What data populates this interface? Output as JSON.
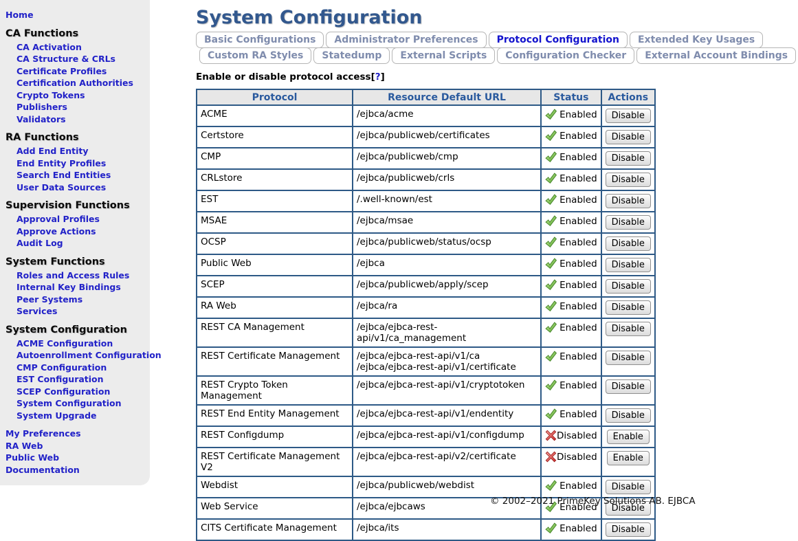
{
  "sidebar": {
    "home": "Home",
    "sections": [
      {
        "title": "CA Functions",
        "items": [
          "CA Activation",
          "CA Structure & CRLs",
          "Certificate Profiles",
          "Certification Authorities",
          "Crypto Tokens",
          "Publishers",
          "Validators"
        ]
      },
      {
        "title": "RA Functions",
        "items": [
          "Add End Entity",
          "End Entity Profiles",
          "Search End Entities",
          "User Data Sources"
        ]
      },
      {
        "title": "Supervision Functions",
        "items": [
          "Approval Profiles",
          "Approve Actions",
          "Audit Log"
        ]
      },
      {
        "title": "System Functions",
        "items": [
          "Roles and Access Rules",
          "Internal Key Bindings",
          "Peer Systems",
          "Services"
        ]
      },
      {
        "title": "System Configuration",
        "items": [
          "ACME Configuration",
          "Autoenrollment Configuration",
          "CMP Configuration",
          "EST Configuration",
          "SCEP Configuration",
          "System Configuration",
          "System Upgrade"
        ]
      }
    ],
    "footer_links": [
      "My Preferences",
      "RA Web",
      "Public Web",
      "Documentation"
    ]
  },
  "main": {
    "title": "System Configuration",
    "tabs_row1": [
      {
        "label": "Basic Configurations",
        "active": false
      },
      {
        "label": "Administrator Preferences",
        "active": false
      },
      {
        "label": "Protocol Configuration",
        "active": true
      },
      {
        "label": "Extended Key Usages",
        "active": false
      }
    ],
    "tabs_row2": [
      {
        "label": "Custom RA Styles",
        "active": false
      },
      {
        "label": "Statedump",
        "active": false
      },
      {
        "label": "External Scripts",
        "active": false
      },
      {
        "label": "Configuration Checker",
        "active": false
      },
      {
        "label": "External Account Bindings",
        "active": false
      }
    ],
    "section_heading": "Enable or disable protocol access",
    "help_open": "[",
    "help_mark": "?",
    "help_close": "]",
    "table": {
      "headers": [
        "Protocol",
        "Resource Default URL",
        "Status",
        "Actions"
      ],
      "rows": [
        {
          "protocol": "ACME",
          "url": "/ejbca/acme",
          "status": "Enabled",
          "action": "Disable"
        },
        {
          "protocol": "Certstore",
          "url": "/ejbca/publicweb/certificates",
          "status": "Enabled",
          "action": "Disable"
        },
        {
          "protocol": "CMP",
          "url": "/ejbca/publicweb/cmp",
          "status": "Enabled",
          "action": "Disable"
        },
        {
          "protocol": "CRLstore",
          "url": "/ejbca/publicweb/crls",
          "status": "Enabled",
          "action": "Disable"
        },
        {
          "protocol": "EST",
          "url": "/.well-known/est",
          "status": "Enabled",
          "action": "Disable"
        },
        {
          "protocol": "MSAE",
          "url": "/ejbca/msae",
          "status": "Enabled",
          "action": "Disable"
        },
        {
          "protocol": "OCSP",
          "url": "/ejbca/publicweb/status/ocsp",
          "status": "Enabled",
          "action": "Disable"
        },
        {
          "protocol": "Public Web",
          "url": "/ejbca",
          "status": "Enabled",
          "action": "Disable"
        },
        {
          "protocol": "SCEP",
          "url": "/ejbca/publicweb/apply/scep",
          "status": "Enabled",
          "action": "Disable"
        },
        {
          "protocol": "RA Web",
          "url": "/ejbca/ra",
          "status": "Enabled",
          "action": "Disable"
        },
        {
          "protocol": "REST CA Management",
          "url": "/ejbca/ejbca-rest-api/v1/ca_management",
          "status": "Enabled",
          "action": "Disable"
        },
        {
          "protocol": "REST Certificate Management",
          "url": "/ejbca/ejbca-rest-api/v1/ca\n/ejbca/ejbca-rest-api/v1/certificate",
          "status": "Enabled",
          "action": "Disable"
        },
        {
          "protocol": "REST Crypto Token Management",
          "url": "/ejbca/ejbca-rest-api/v1/cryptotoken",
          "status": "Enabled",
          "action": "Disable"
        },
        {
          "protocol": "REST End Entity Management",
          "url": "/ejbca/ejbca-rest-api/v1/endentity",
          "status": "Enabled",
          "action": "Disable"
        },
        {
          "protocol": "REST Configdump",
          "url": "/ejbca/ejbca-rest-api/v1/configdump",
          "status": "Disabled",
          "action": "Enable"
        },
        {
          "protocol": "REST Certificate Management V2",
          "url": "/ejbca/ejbca-rest-api/v2/certificate",
          "status": "Disabled",
          "action": "Enable"
        },
        {
          "protocol": "Webdist",
          "url": "/ejbca/publicweb/webdist",
          "status": "Enabled",
          "action": "Disable"
        },
        {
          "protocol": "Web Service",
          "url": "/ejbca/ejbcaws",
          "status": "Enabled",
          "action": "Disable"
        },
        {
          "protocol": "CITS Certificate Management",
          "url": "/ejbca/its",
          "status": "Enabled",
          "action": "Disable"
        }
      ]
    },
    "footer": "© 2002–2021 PrimeKey Solutions AB. EJBCA"
  },
  "colors": {
    "link": "#2222c8",
    "title": "#32588e",
    "border": "#2d5986",
    "header_text": "#2a5a9e",
    "header_bg": "#e7e7e7",
    "sidebar_bg": "#ececec",
    "tab_active": "#1414cd",
    "tab_inactive": "#7f8cad",
    "enabled_green": "#4e9a28",
    "disabled_red": "#cc2a2a",
    "button_top": "#fdfdfd",
    "button_bg": "#dcdcdc"
  }
}
